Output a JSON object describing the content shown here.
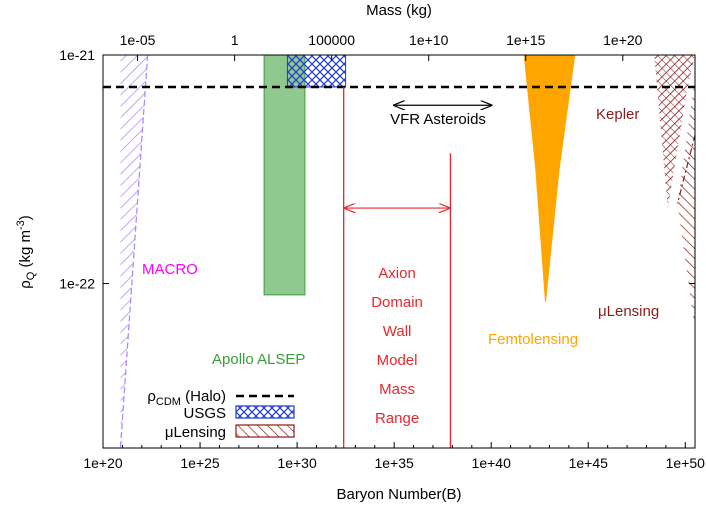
{
  "chart_data": {
    "type": "area",
    "xlabel": "Baryon Number(B)",
    "ylabel_main": "ρ",
    "ylabel_sub": "Q",
    "ylabel_rest": " (kg m",
    "ylabel_sup": "-3",
    "ylabel_end": ")",
    "top_xlabel": "Mass (kg)",
    "xscale": "log",
    "yscale": "log",
    "xlim_log10": [
      20,
      50.5
    ],
    "ylim_log10": [
      -22.72,
      -21
    ],
    "x_ticks": [
      {
        "log10": 20,
        "label": "1e+20"
      },
      {
        "log10": 25,
        "label": "1e+25"
      },
      {
        "log10": 30,
        "label": "1e+30"
      },
      {
        "log10": 35,
        "label": "1e+35"
      },
      {
        "log10": 40,
        "label": "1e+40"
      },
      {
        "log10": 45,
        "label": "1e+45"
      },
      {
        "log10": 50,
        "label": "1e+50"
      }
    ],
    "y_ticks": [
      {
        "log10": -21,
        "label": "1e-21"
      },
      {
        "log10": -22,
        "label": "1e-22"
      }
    ],
    "top_ticks": [
      {
        "x_log10": 21.78,
        "label": "1e-05"
      },
      {
        "x_log10": 26.78,
        "label": "1"
      },
      {
        "x_log10": 31.78,
        "label": "100000"
      },
      {
        "x_log10": 36.78,
        "label": "1e+10"
      },
      {
        "x_log10": 41.78,
        "label": "1e+15"
      },
      {
        "x_log10": 46.78,
        "label": "1e+20"
      }
    ],
    "rho_cdm_log10": -21.14,
    "colors": {
      "cdm": "#000000",
      "macro": "#a682ff",
      "alsep": "#3a9e3a",
      "usgs": "#1f3ad6",
      "axion": "#e8282e",
      "femto": "#ffa500",
      "kepler": "#8b1a1a",
      "lensing": "#8b1a1a",
      "vfr": "#000000"
    },
    "regions": [
      {
        "name": "MACRO",
        "color": "#a682ff",
        "points": [
          [
            20.9,
            -21
          ],
          [
            22.3,
            -21
          ],
          [
            20.9,
            -22.72
          ]
        ]
      },
      {
        "name": "Apollo ALSEP",
        "color": "#3a9e3a",
        "points": [
          [
            28.3,
            -21
          ],
          [
            30.4,
            -21
          ],
          [
            30.4,
            -22.05
          ],
          [
            28.3,
            -22.05
          ]
        ]
      },
      {
        "name": "USGS",
        "color": "#1f3ad6",
        "points": [
          [
            29.5,
            -21
          ],
          [
            32.5,
            -21
          ],
          [
            32.5,
            -21.14
          ],
          [
            29.5,
            -21.14
          ]
        ]
      },
      {
        "name": "Femtolensing",
        "color": "#ffa500",
        "points": [
          [
            41.7,
            -21
          ],
          [
            44.3,
            -21
          ],
          [
            43.5,
            -21.5
          ],
          [
            42.8,
            -22.08
          ],
          [
            42.3,
            -21.5
          ]
        ]
      },
      {
        "name": "Kepler",
        "color": "#8b1a1a",
        "points": [
          [
            48.4,
            -21
          ],
          [
            50.5,
            -21
          ],
          [
            50.1,
            -21.15
          ],
          [
            49.1,
            -21.67
          ]
        ]
      },
      {
        "name": "μLensing",
        "color": "#8b1a1a",
        "points": [
          [
            50.5,
            -21.1
          ],
          [
            50.5,
            -22.2
          ],
          [
            49.6,
            -21.65
          ]
        ]
      }
    ],
    "axion_range": {
      "label": "Axion Domain Wall Model Mass Range",
      "x_min": 32.4,
      "x_max": 37.9,
      "top_x_min": -21.14,
      "top_x_max": -21.43,
      "arrow_y": -21.67,
      "color": "#e8282e",
      "lines": [
        "Axion",
        "Domain",
        "Wall",
        "Model",
        "Mass",
        "Range"
      ]
    },
    "vfr": {
      "label": "VFR Asteroids",
      "x_min": 35,
      "x_max": 40,
      "y": -21.22
    },
    "annotations": {
      "macro": "MACRO",
      "alsep": "Apollo ALSEP",
      "femto": "Femtolensing",
      "kepler": "Kepler",
      "lensing": "μLensing",
      "vfr": "VFR Asteroids"
    },
    "legend": {
      "placement": "bottom-left",
      "entries": [
        {
          "label_main": "ρ",
          "label_sub": "CDM",
          "label_rest": " (Halo)",
          "style": "dashed",
          "color": "#000000"
        },
        {
          "label": "USGS",
          "style": "crosshatch",
          "color": "#1f3ad6"
        },
        {
          "label": "μLensing",
          "style": "hatch",
          "color": "#8b1a1a"
        }
      ]
    }
  }
}
